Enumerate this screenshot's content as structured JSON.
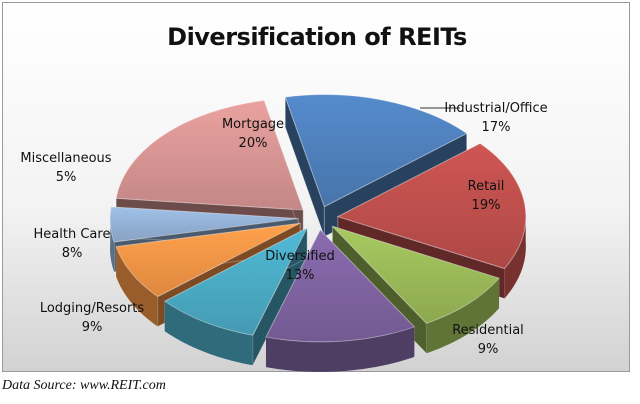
{
  "chart_data": {
    "type": "pie",
    "title": "Diversification of REITs",
    "style": "3d-exploded",
    "categories": [
      "Industrial/Office",
      "Retail",
      "Residential",
      "Diversified",
      "Lodging/Resorts",
      "Health Care",
      "Miscellaneous",
      "Mortgage"
    ],
    "values": [
      17,
      19,
      9,
      13,
      9,
      8,
      5,
      20
    ],
    "value_labels": [
      "17%",
      "19%",
      "9%",
      "13%",
      "9%",
      "8%",
      "5%",
      "20%"
    ],
    "colors": [
      "#4f81bd",
      "#c0504d",
      "#9bbb59",
      "#8064a2",
      "#4bacc6",
      "#f79646",
      "#95b3d7",
      "#d99694"
    ],
    "legend": "none",
    "data_labels": "category-and-percent"
  },
  "footer": {
    "source": "Data Source: www.REIT.com"
  }
}
